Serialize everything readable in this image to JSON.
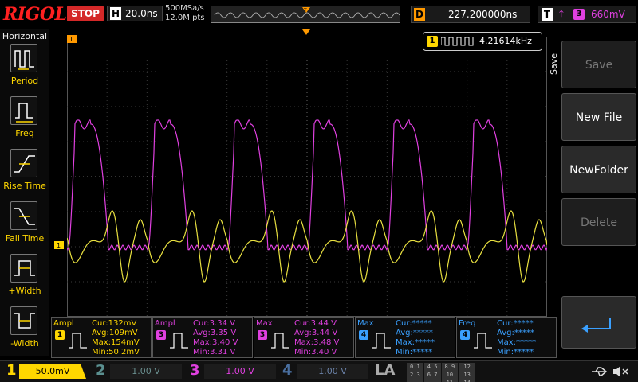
{
  "brand": "RIGOL",
  "run_state": "STOP",
  "timebase": {
    "letter": "H",
    "value": "20.0ns"
  },
  "sampling": {
    "rate": "500MSa/s",
    "points": "12.0M pts"
  },
  "delay": {
    "letter": "D",
    "value": "227.200000ns"
  },
  "trigger": {
    "letter": "T",
    "edge_icon": "rising-edge-icon",
    "source": "3",
    "level": "660mV"
  },
  "left_menu": {
    "title": "Horizontal",
    "items": [
      {
        "label": "Period",
        "icon": "period-icon"
      },
      {
        "label": "Freq",
        "icon": "freq-icon"
      },
      {
        "label": "Rise Time",
        "icon": "rise-time-icon"
      },
      {
        "label": "Fall Time",
        "icon": "fall-time-icon"
      },
      {
        "label": "+Width",
        "icon": "positive-width-icon"
      },
      {
        "label": "-Width",
        "icon": "negative-width-icon"
      }
    ]
  },
  "freq_readout": {
    "channel": "1",
    "value": "4.21614kHz"
  },
  "right_menu": {
    "title": "Save",
    "buttons": [
      {
        "label": "Save",
        "enabled": false
      },
      {
        "label": "New File",
        "enabled": true
      },
      {
        "label": "NewFolder",
        "enabled": true
      },
      {
        "label": "Delete",
        "enabled": false
      }
    ],
    "back_icon": "return-arrow-icon"
  },
  "markers": {
    "trigger_pos": "T",
    "ch1_ground": "1"
  },
  "measurements": [
    {
      "name": "Ampl",
      "channel": "1",
      "color": "#ffd700",
      "lines": [
        "Cur:132mV",
        "Avg:109mV",
        "Max:154mV",
        "Min:50.2mV"
      ]
    },
    {
      "name": "Ampl",
      "channel": "3",
      "color": "#e040e0",
      "lines": [
        "Cur:3.34 V",
        "Avg:3.35 V",
        "Max:3.40 V",
        "Min:3.31 V"
      ]
    },
    {
      "name": "Max",
      "channel": "3",
      "color": "#e040e0",
      "lines": [
        "Cur:3.44 V",
        "Avg:3.44 V",
        "Max:3.48 V",
        "Min:3.40 V"
      ]
    },
    {
      "name": "Max",
      "channel": "4",
      "color": "#3aa0ff",
      "lines": [
        "Cur:*****",
        "Avg:*****",
        "Max:*****",
        "Min:*****"
      ]
    },
    {
      "name": "Freq",
      "channel": "4",
      "color": "#3aa0ff",
      "lines": [
        "Cur:*****",
        "Avg:*****",
        "Max:*****",
        "Min:*****"
      ]
    }
  ],
  "channels": [
    {
      "num": "1",
      "scale": "50.0mV",
      "color": "#ffd700",
      "active": true
    },
    {
      "num": "2",
      "scale": "1.00 V",
      "color": "#5a8f8f",
      "active": false
    },
    {
      "num": "3",
      "scale": "1.00 V",
      "color": "#e040e0",
      "active": true
    },
    {
      "num": "4",
      "scale": "1.00 V",
      "color": "#4a6fa0",
      "active": false
    }
  ],
  "la": {
    "label": "LA",
    "bits": [
      "0 1 2 3",
      "4 5 6 7",
      "8 9 10 11",
      "12 13 14 15",
      "",
      "",
      "",
      ""
    ]
  },
  "status_icons": [
    "usb-icon",
    "speaker-muted-icon"
  ]
}
